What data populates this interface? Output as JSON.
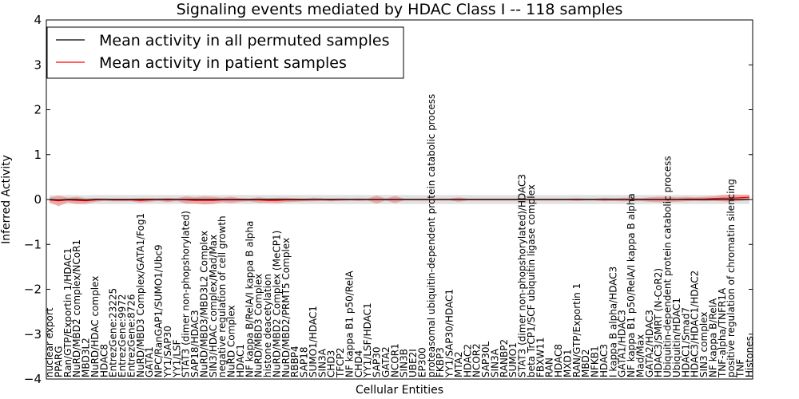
{
  "chart_data": {
    "type": "line",
    "title": "Signaling events mediated by HDAC Class I -- 118 samples",
    "xlabel": "Cellular Entities",
    "ylabel": "Inferred Activity",
    "ylim": [
      -4,
      4
    ],
    "yticks": [
      -4,
      -3,
      -2,
      -1,
      0,
      1,
      2,
      3,
      4
    ],
    "grid": false,
    "legend_position": "top-left",
    "colors": {
      "permuted": "#000000",
      "patient": "#ff0000",
      "patient_band": "#f08080",
      "permuted_band": "#c8c8c8"
    },
    "categories": [
      "nuclear export",
      "PPARG",
      "Ran/GTP/Exportin 1/HDAC1",
      "NuRD/MBD2 complex/NCoR1",
      "MBD3L2",
      "NuRD/HDAC complex",
      "HDAC8",
      "EntrezGene:23225",
      "EntrezGene:9972",
      "EntrezGene:8726",
      "NuRD/MBD3 Complex/GATA1/Fog1",
      "GATA1",
      "NPC/RanGAP1/SUMO1/Ubc9",
      "YY1/SAP30",
      "YY1/LSF",
      "STAT3 (dimer non-phopshorylated)",
      "SAP18/HDAC3",
      "NuRD/MBD3/MBD3L2 Complex",
      "SIN3/HDAC complex/Mad/Max",
      "negative regulation of cell growth",
      "NuRD Complex",
      "HDAC1",
      "NF kappa B/RelA/I kappa B alpha",
      "NuRD/MBD3 Complex",
      "histone deacetylation",
      "NuRD/MBD2 Complex (MeCP1)",
      "NuRD/MBD2/PRMT5 Complex",
      "RBBP4",
      "SAP18",
      "SUMO1/HDAC1",
      "SIN3A",
      "CHD3",
      "TFCP2",
      "NF kappa B1 p50/RelA",
      "CHD4",
      "YY1/LSF/HDAC1",
      "SAP30",
      "GATA2",
      "NCOR1",
      "SIN3B",
      "UBE2I",
      "EP300",
      "proteasomal ubiquitin-dependent protein catabolic process",
      "FKBP3",
      "YY1/SAP30/HDAC1",
      "MTA2",
      "HDAC2",
      "NCOR2",
      "SAP30L",
      "SIN3A",
      "RANBP2",
      "SUMO1",
      "STAT3 (dimer non-phopshorylated)/HDAC3",
      "beta TrCP1/SCF ubiquitin ligase complex",
      "FBXW11",
      "RAN",
      "HDAC8",
      "MXD1",
      "RAN/GTP/Exportin 1",
      "MBD2",
      "NFKB1",
      "HDAC3",
      "I kappa B alpha/HDAC3",
      "GATA1/HDAC3",
      "NF kappa B1 p50/RelA/I kappa B alpha",
      "Mad/Max",
      "GATA2/HDAC3",
      "HDAC3/SMRT (N-CoR2)",
      "Ubiquitin-dependent protein catabolic process",
      "Ubiquitin/HDAC1",
      "HDAC1/Smad7",
      "HDAC3/HDAC1/HDAC2",
      "SIN3 complex",
      "NF kappa B/RelA",
      "TNF-alpha/TNFR1A",
      "positive regulation of chromatin silencing",
      "TNF",
      "Histones"
    ],
    "series": [
      {
        "name": "Mean activity in all permuted samples",
        "values": [
          0.0,
          -0.01,
          0.0,
          0.0,
          -0.01,
          0.0,
          0.0,
          0.0,
          0.0,
          0.0,
          0.0,
          0.0,
          0.0,
          0.0,
          0.0,
          0.0,
          0.0,
          0.0,
          0.0,
          0.0,
          0.0,
          0.0,
          0.0,
          0.0,
          0.0,
          0.0,
          0.0,
          0.0,
          0.0,
          0.0,
          0.0,
          0.0,
          0.0,
          0.0,
          0.0,
          0.0,
          0.0,
          0.0,
          0.0,
          0.0,
          0.0,
          0.0,
          0.0,
          0.0,
          0.0,
          0.0,
          0.0,
          0.0,
          0.0,
          0.0,
          0.0,
          0.0,
          0.0,
          0.0,
          0.0,
          0.0,
          0.0,
          0.0,
          0.0,
          0.0,
          0.0,
          0.0,
          0.0,
          0.0,
          0.0,
          0.0,
          0.0,
          0.0,
          0.0,
          0.0,
          0.0,
          0.0,
          0.0,
          0.0,
          0.0,
          0.0,
          0.0,
          0.0
        ]
      },
      {
        "name": "Mean activity in patient samples",
        "values": [
          -0.01,
          -0.03,
          -0.01,
          -0.02,
          -0.03,
          -0.01,
          0.0,
          -0.01,
          -0.01,
          -0.01,
          -0.02,
          -0.01,
          0.0,
          -0.01,
          0.0,
          -0.01,
          -0.02,
          -0.02,
          -0.02,
          -0.01,
          -0.01,
          -0.01,
          -0.01,
          -0.01,
          -0.02,
          -0.02,
          -0.01,
          -0.01,
          -0.01,
          0.0,
          0.0,
          -0.01,
          0.0,
          0.0,
          0.0,
          0.0,
          0.0,
          0.0,
          0.0,
          0.0,
          0.0,
          0.0,
          0.0,
          0.0,
          0.0,
          0.0,
          0.0,
          0.0,
          0.0,
          0.0,
          0.0,
          0.0,
          0.0,
          0.0,
          0.0,
          0.0,
          0.0,
          0.0,
          0.0,
          0.0,
          0.0,
          0.0,
          0.0,
          0.0,
          0.0,
          0.0,
          0.0,
          0.0,
          0.0,
          0.0,
          0.01,
          0.01,
          0.01,
          0.02,
          0.03,
          0.03,
          0.04,
          0.05
        ]
      }
    ],
    "patient_band_halfwidth": [
      0.05,
      0.12,
      0.05,
      0.08,
      0.06,
      0.04,
      0.03,
      0.03,
      0.03,
      0.03,
      0.05,
      0.04,
      0.03,
      0.05,
      0.03,
      0.08,
      0.07,
      0.09,
      0.08,
      0.05,
      0.07,
      0.04,
      0.03,
      0.06,
      0.05,
      0.06,
      0.05,
      0.04,
      0.03,
      0.04,
      0.03,
      0.03,
      0.03,
      0.02,
      0.03,
      0.02,
      0.09,
      0.02,
      0.08,
      0.02,
      0.02,
      0.02,
      0.02,
      0.02,
      0.02,
      0.05,
      0.02,
      0.02,
      0.02,
      0.02,
      0.02,
      0.02,
      0.02,
      0.02,
      0.02,
      0.02,
      0.02,
      0.02,
      0.03,
      0.02,
      0.02,
      0.04,
      0.03,
      0.04,
      0.04,
      0.03,
      0.05,
      0.06,
      0.06,
      0.05,
      0.05,
      0.04,
      0.05,
      0.05,
      0.07,
      0.08,
      0.07,
      0.06
    ],
    "permuted_band_halfwidth": 0.1
  }
}
